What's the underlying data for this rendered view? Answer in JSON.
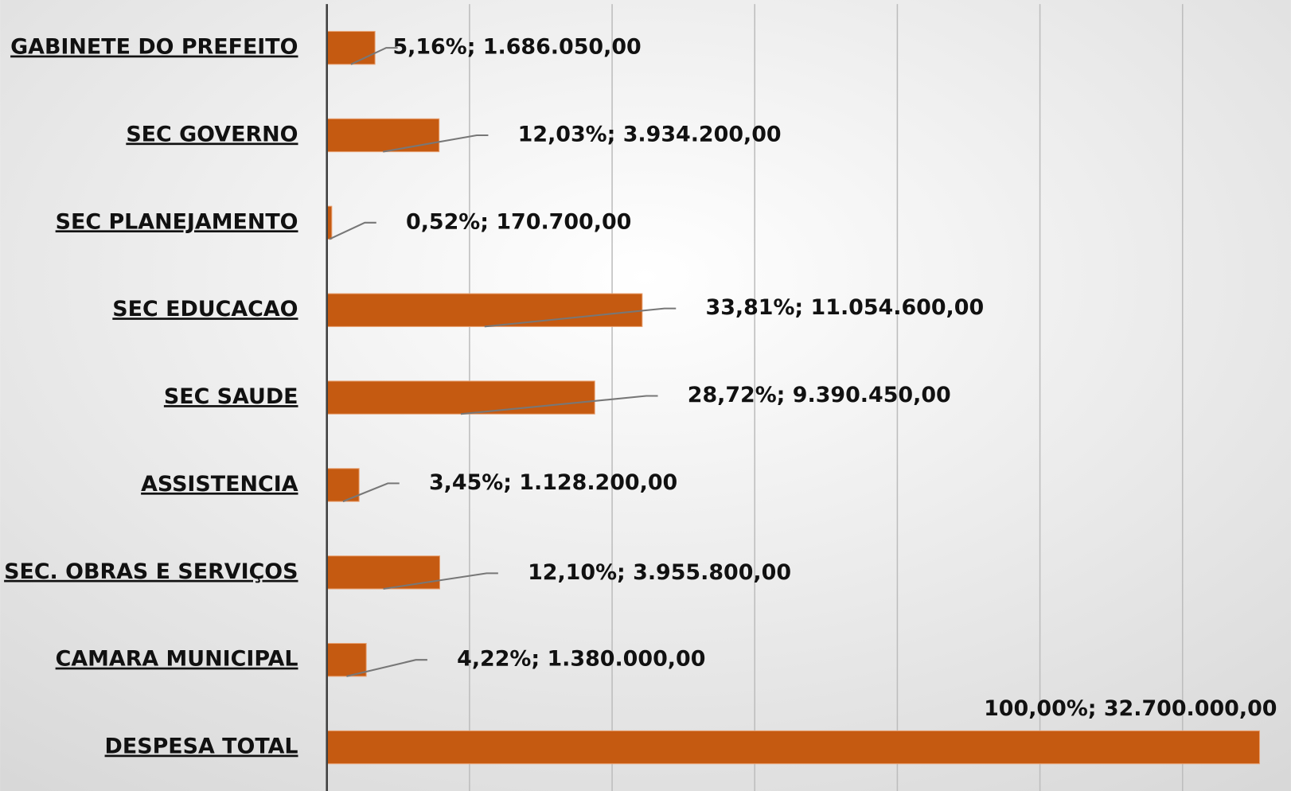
{
  "chart_data": {
    "type": "bar",
    "orientation": "horizontal",
    "categories": [
      "GABINETE DO PREFEITO",
      "SEC GOVERNO",
      "SEC PLANEJAMENTO",
      "SEC EDUCACAO",
      "SEC SAUDE",
      "ASSISTENCIA",
      "SEC. OBRAS E SERVIÇOS",
      "CAMARA MUNICIPAL",
      "DESPESA TOTAL"
    ],
    "values": [
      1686050,
      3934200,
      170700,
      11054600,
      9390450,
      1128200,
      3955800,
      1380000,
      32700000
    ],
    "value_labels": [
      "5,16%; 1.686.050,00",
      "12,03%; 3.934.200,00",
      "0,52%; 170.700,00",
      "33,81%; 11.054.600,00",
      "28,72%; 9.390.450,00",
      "3,45%; 1.128.200,00",
      "12,10%; 3.955.800,00",
      "4,22%; 1.380.000,00",
      "100,00%; 32.700.000,00"
    ],
    "color": "#c55a11",
    "xlim": [
      0,
      33800000
    ],
    "xticks": [
      0,
      5000000,
      10000000,
      15000000,
      20000000,
      25000000,
      30000000
    ],
    "grid": true
  }
}
